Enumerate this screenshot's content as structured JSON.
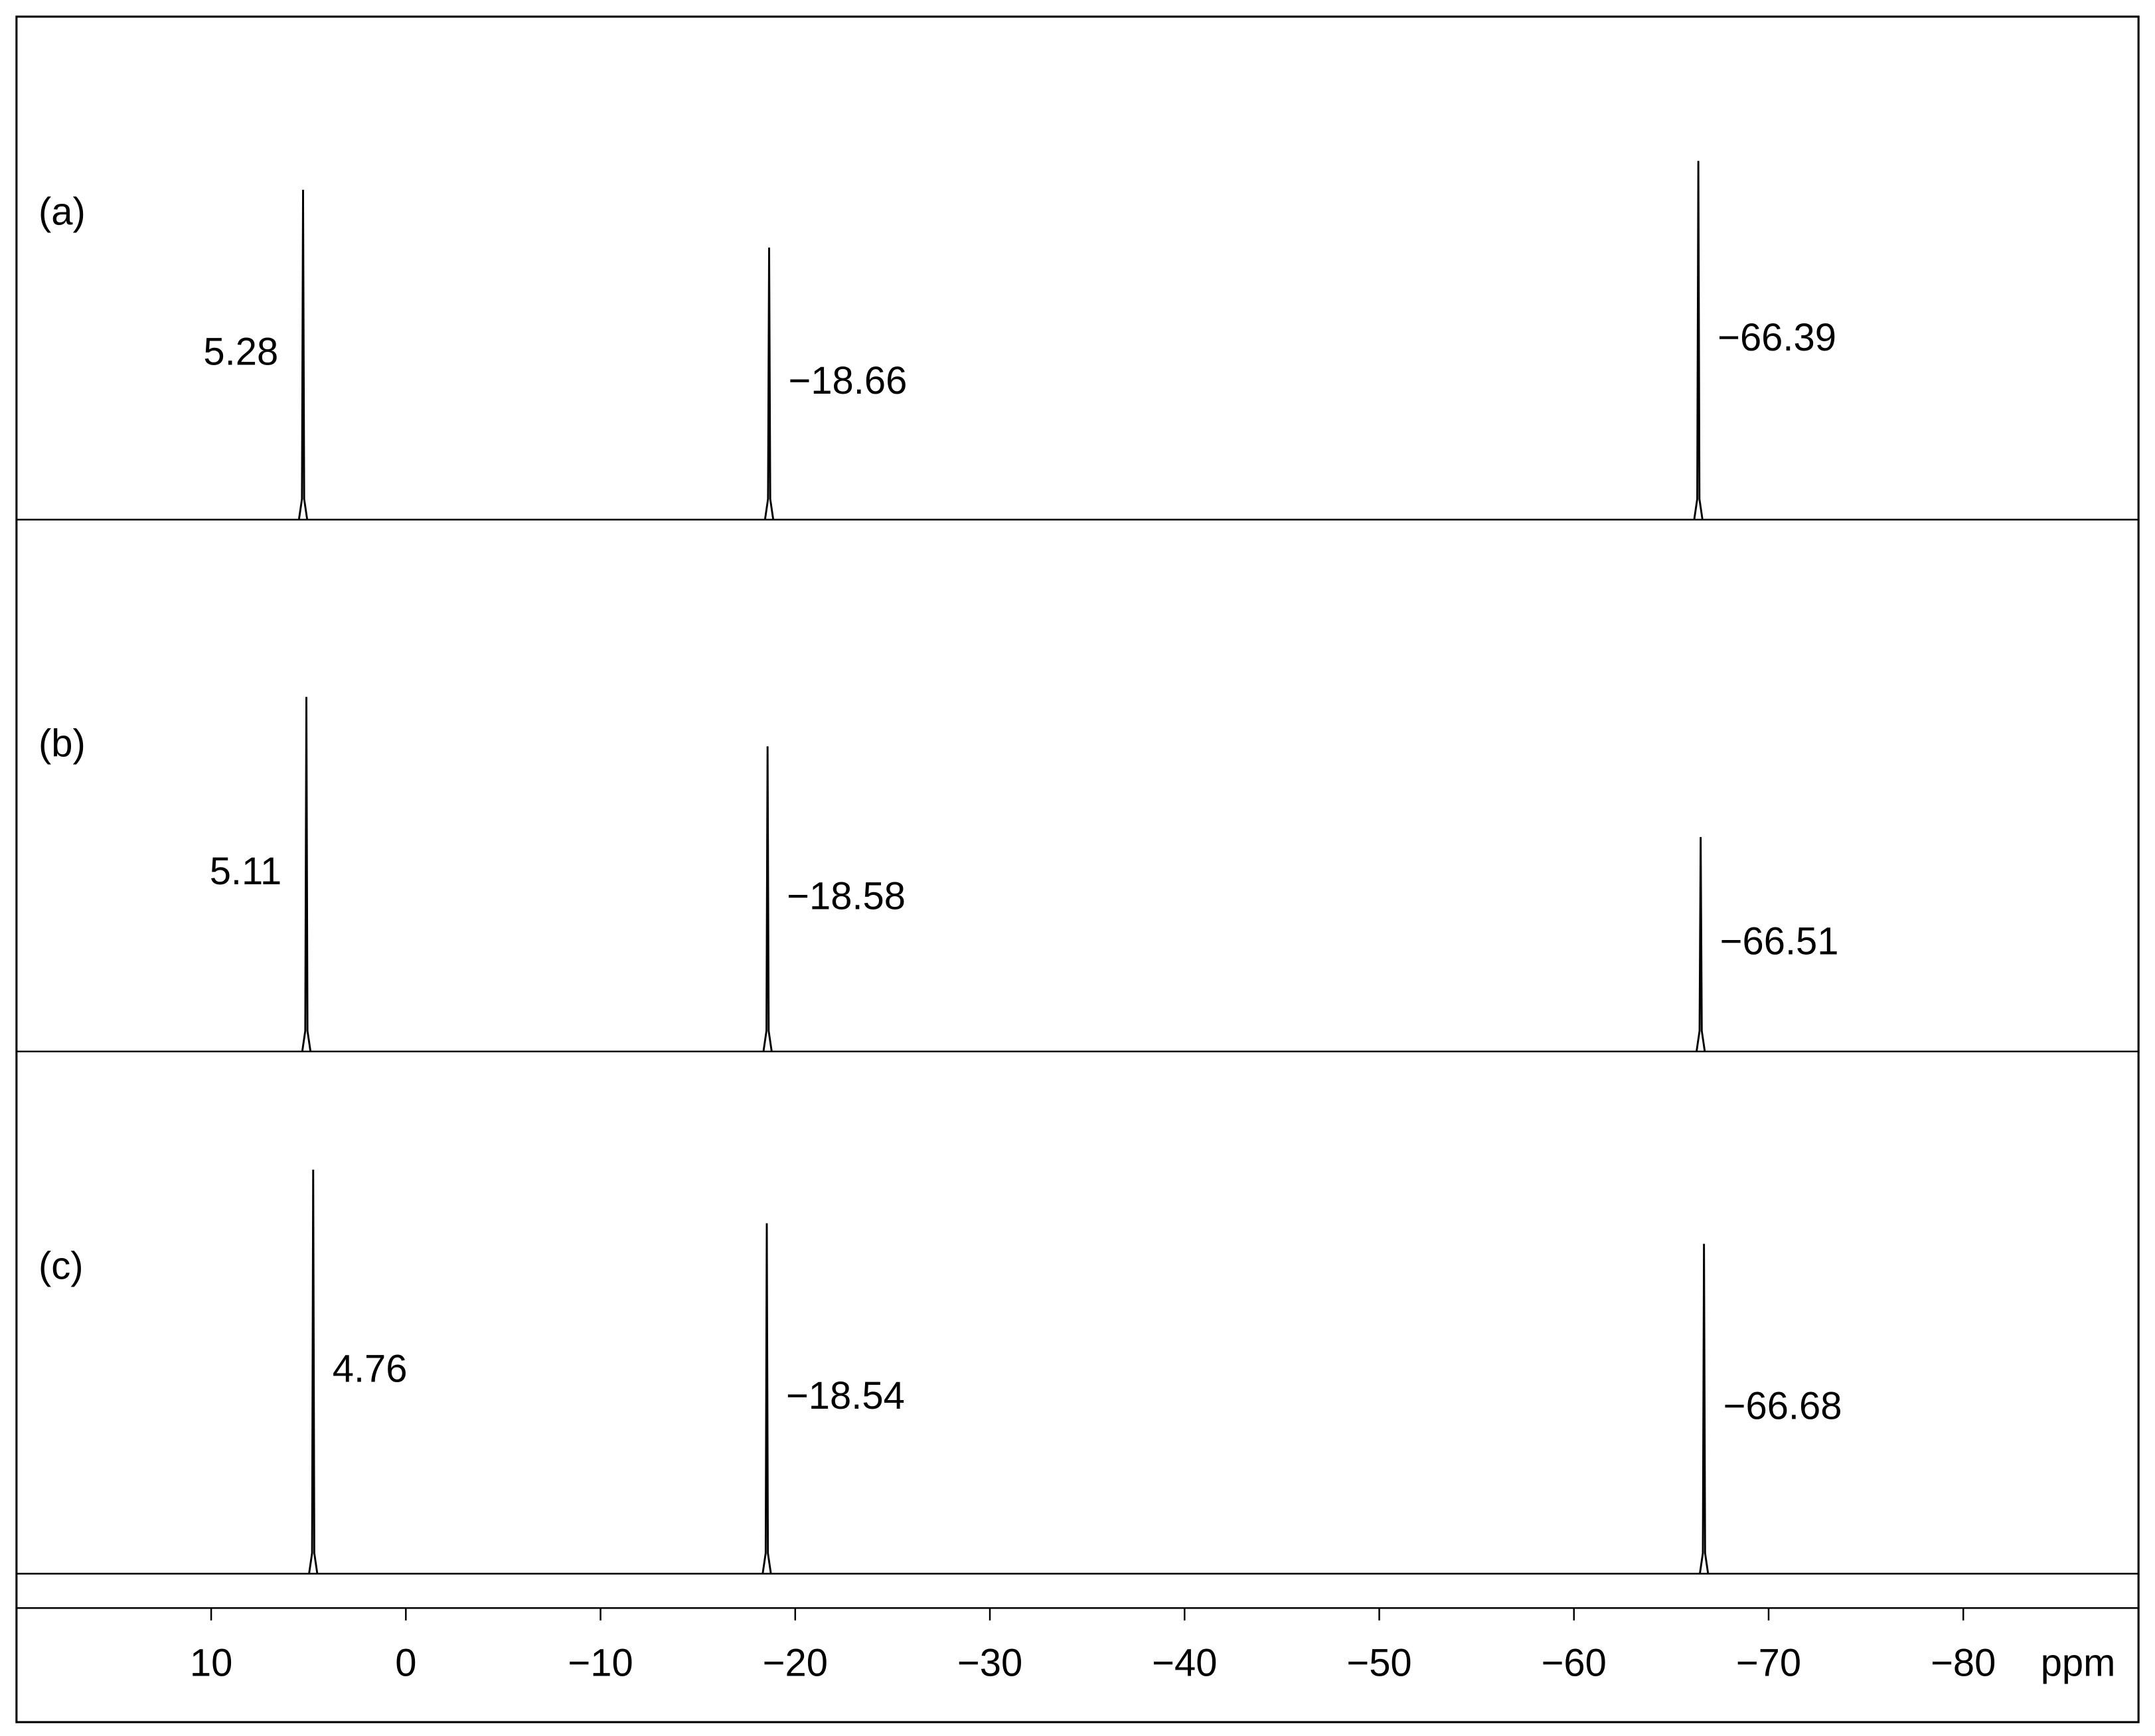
{
  "chart_data": {
    "type": "spectrum",
    "xlabel": "ppm",
    "xlim": [
      20,
      -89
    ],
    "xticks": [
      10,
      0,
      {
        "value": -10,
        "label": "−10"
      },
      {
        "value": -20,
        "label": "−20"
      },
      {
        "value": -30,
        "label": "−30"
      },
      {
        "value": -40,
        "label": "−40"
      },
      {
        "value": -50,
        "label": "−50"
      },
      {
        "value": -60,
        "label": "−60"
      },
      {
        "value": -70,
        "label": "−70"
      },
      {
        "value": -80,
        "label": "−80"
      }
    ],
    "color": "#000000",
    "series": [
      {
        "name": "(a)",
        "peaks": [
          5.28,
          -18.66,
          -66.39
        ],
        "value_labels": [
          "5.28",
          "−18.66",
          "−66.39"
        ],
        "intensities": [
          80,
          66,
          87
        ]
      },
      {
        "name": "(b)",
        "peaks": [
          5.11,
          -18.58,
          -66.51
        ],
        "value_labels": [
          "5.11",
          "−18.58",
          "−66.51"
        ],
        "intensities": [
          86,
          74,
          52
        ]
      },
      {
        "name": "(c)",
        "peaks": [
          4.76,
          -18.54,
          -66.68
        ],
        "value_labels": [
          "4.76",
          "−18.54",
          "−66.68"
        ],
        "intensities": [
          98,
          85,
          80
        ]
      }
    ]
  }
}
